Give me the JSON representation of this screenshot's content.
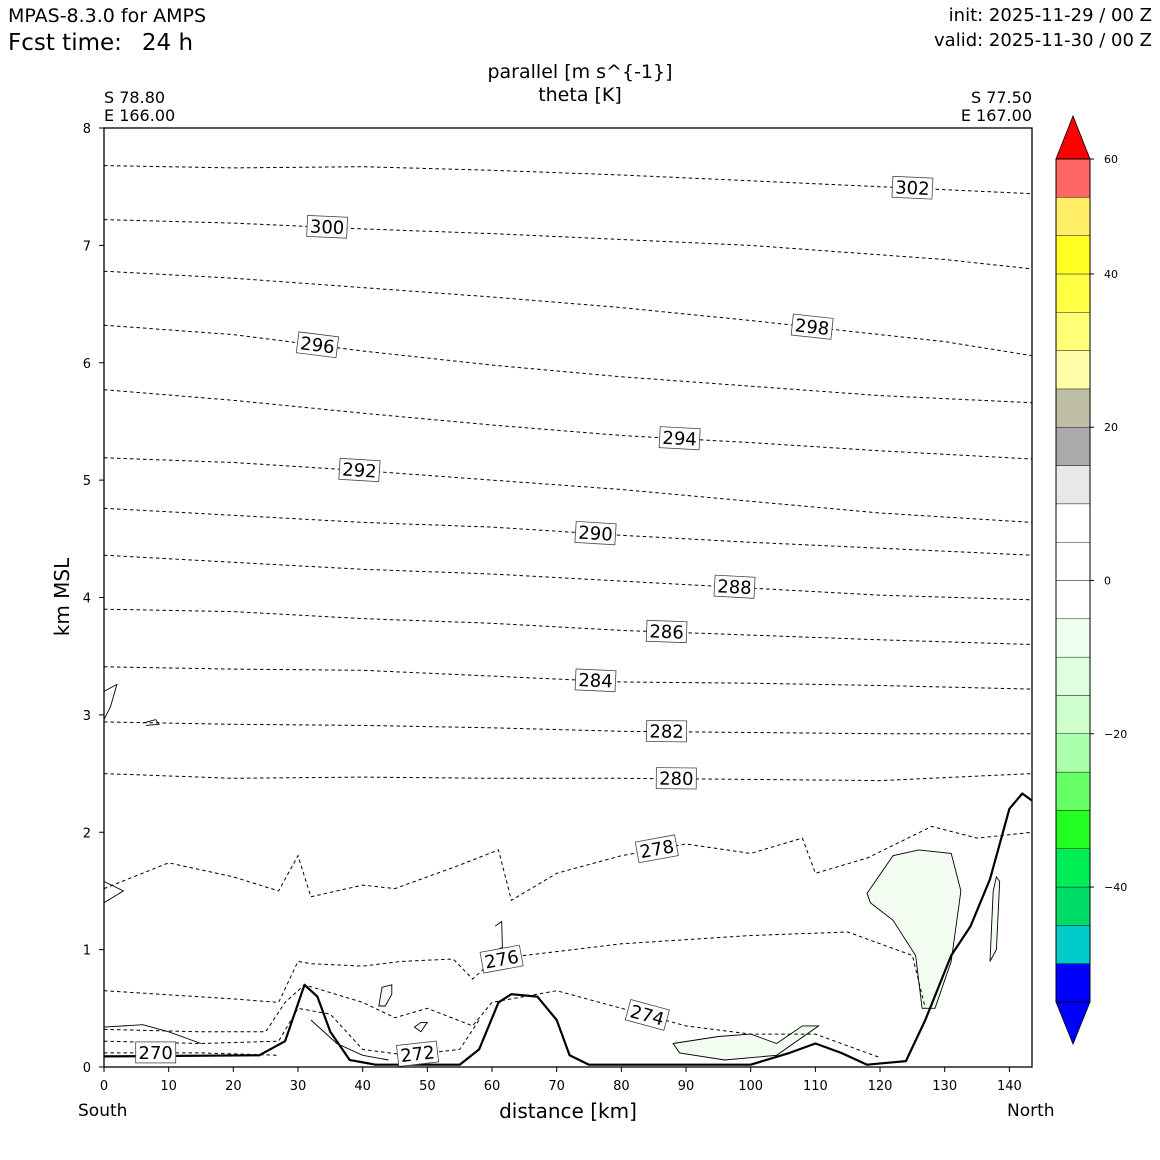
{
  "header": {
    "model": "MPAS-8.3.0 for AMPS",
    "fcst_label": "Fcst time:",
    "fcst_value": "24 h",
    "init": "init: 2025-11-29 / 00 Z",
    "valid": "valid: 2025-11-30 / 00 Z"
  },
  "chart_data": {
    "type": "contour",
    "title": "parallel [m s^{-1}]",
    "subtitle": "theta [K]",
    "xlabel": "distance [km]",
    "ylabel": "km MSL",
    "xlim": [
      0,
      143.5
    ],
    "ylim": [
      0,
      8
    ],
    "x_ticks": [
      0,
      10,
      20,
      30,
      40,
      50,
      60,
      70,
      80,
      90,
      100,
      110,
      120,
      130,
      140
    ],
    "y_ticks": [
      0,
      1,
      2,
      3,
      4,
      5,
      6,
      7,
      8
    ],
    "start_point": {
      "lat": "S 78.80",
      "lon": "E 166.00",
      "end_label": "South"
    },
    "end_point": {
      "lat": "S 77.50",
      "lon": "E 167.00",
      "end_label": "North"
    },
    "theta_contours": [
      {
        "label": "302",
        "label_x": 125.0,
        "points": [
          [
            0,
            7.68
          ],
          [
            20,
            7.66
          ],
          [
            40,
            7.67
          ],
          [
            60,
            7.64
          ],
          [
            80,
            7.6
          ],
          [
            100,
            7.55
          ],
          [
            120,
            7.5
          ],
          [
            143.5,
            7.44
          ]
        ]
      },
      {
        "label": "300",
        "label_x": 34.5,
        "points": [
          [
            0,
            7.22
          ],
          [
            20,
            7.19
          ],
          [
            40,
            7.14
          ],
          [
            60,
            7.1
          ],
          [
            80,
            7.05
          ],
          [
            100,
            7.0
          ],
          [
            120,
            6.92
          ],
          [
            130,
            6.88
          ],
          [
            143.5,
            6.8
          ]
        ]
      },
      {
        "label": "298",
        "label_x": 109.5,
        "points": [
          [
            0,
            6.78
          ],
          [
            20,
            6.72
          ],
          [
            40,
            6.64
          ],
          [
            60,
            6.56
          ],
          [
            80,
            6.47
          ],
          [
            100,
            6.36
          ],
          [
            120,
            6.24
          ],
          [
            130,
            6.18
          ],
          [
            143.5,
            6.06
          ]
        ]
      },
      {
        "label": "296",
        "label_x": 33.0,
        "points": [
          [
            0,
            6.32
          ],
          [
            20,
            6.24
          ],
          [
            40,
            6.1
          ],
          [
            60,
            5.98
          ],
          [
            80,
            5.88
          ],
          [
            100,
            5.8
          ],
          [
            120,
            5.72
          ],
          [
            143.5,
            5.66
          ]
        ]
      },
      {
        "label": "294",
        "label_x": 89.0,
        "points": [
          [
            0,
            5.77
          ],
          [
            20,
            5.68
          ],
          [
            40,
            5.57
          ],
          [
            60,
            5.47
          ],
          [
            80,
            5.38
          ],
          [
            100,
            5.32
          ],
          [
            120,
            5.25
          ],
          [
            143.5,
            5.18
          ]
        ]
      },
      {
        "label": "292",
        "label_x": 39.5,
        "points": [
          [
            0,
            5.19
          ],
          [
            20,
            5.15
          ],
          [
            40,
            5.08
          ],
          [
            60,
            5.0
          ],
          [
            80,
            4.92
          ],
          [
            100,
            4.82
          ],
          [
            120,
            4.72
          ],
          [
            143.5,
            4.64
          ]
        ]
      },
      {
        "label": "290",
        "label_x": 76.0,
        "points": [
          [
            0,
            4.76
          ],
          [
            20,
            4.7
          ],
          [
            40,
            4.64
          ],
          [
            60,
            4.6
          ],
          [
            80,
            4.53
          ],
          [
            100,
            4.47
          ],
          [
            120,
            4.42
          ],
          [
            143.5,
            4.36
          ]
        ]
      },
      {
        "label": "288",
        "label_x": 97.5,
        "points": [
          [
            0,
            4.36
          ],
          [
            20,
            4.3
          ],
          [
            40,
            4.24
          ],
          [
            60,
            4.2
          ],
          [
            80,
            4.14
          ],
          [
            100,
            4.08
          ],
          [
            120,
            4.02
          ],
          [
            143.5,
            3.98
          ]
        ]
      },
      {
        "label": "286",
        "label_x": 87.0,
        "points": [
          [
            0,
            3.9
          ],
          [
            20,
            3.88
          ],
          [
            40,
            3.82
          ],
          [
            60,
            3.78
          ],
          [
            80,
            3.72
          ],
          [
            100,
            3.68
          ],
          [
            120,
            3.64
          ],
          [
            143.5,
            3.6
          ]
        ]
      },
      {
        "label": "284",
        "label_x": 76.0,
        "points": [
          [
            0,
            3.41
          ],
          [
            20,
            3.39
          ],
          [
            40,
            3.38
          ],
          [
            60,
            3.33
          ],
          [
            80,
            3.28
          ],
          [
            100,
            3.27
          ],
          [
            120,
            3.25
          ],
          [
            143.5,
            3.22
          ]
        ]
      },
      {
        "label": "282",
        "label_x": 87.0,
        "points": [
          [
            0,
            2.94
          ],
          [
            20,
            2.92
          ],
          [
            40,
            2.91
          ],
          [
            60,
            2.89
          ],
          [
            80,
            2.86
          ],
          [
            100,
            2.85
          ],
          [
            120,
            2.84
          ],
          [
            143.5,
            2.84
          ]
        ]
      },
      {
        "label": "280",
        "label_x": 88.5,
        "points": [
          [
            0,
            2.5
          ],
          [
            20,
            2.46
          ],
          [
            40,
            2.47
          ],
          [
            60,
            2.46
          ],
          [
            80,
            2.46
          ],
          [
            100,
            2.45
          ],
          [
            120,
            2.44
          ],
          [
            143.5,
            2.5
          ]
        ]
      },
      {
        "label": "278",
        "label_x": 85.5,
        "points": [
          [
            0,
            1.52
          ],
          [
            10,
            1.74
          ],
          [
            20,
            1.62
          ],
          [
            27,
            1.5
          ],
          [
            30,
            1.8
          ],
          [
            32,
            1.45
          ],
          [
            40,
            1.55
          ],
          [
            45,
            1.52
          ],
          [
            55,
            1.72
          ],
          [
            61,
            1.85
          ],
          [
            63,
            1.42
          ],
          [
            70,
            1.65
          ],
          [
            80,
            1.8
          ],
          [
            90,
            1.9
          ],
          [
            100,
            1.82
          ],
          [
            108,
            1.95
          ],
          [
            110,
            1.65
          ],
          [
            118,
            1.78
          ],
          [
            128,
            2.05
          ],
          [
            135,
            1.95
          ],
          [
            143.5,
            2.0
          ]
        ]
      },
      {
        "label": "276",
        "label_x": 61.5,
        "points": [
          [
            0,
            0.65
          ],
          [
            20,
            0.58
          ],
          [
            27,
            0.55
          ],
          [
            30,
            0.9
          ],
          [
            32,
            0.88
          ],
          [
            40,
            0.86
          ],
          [
            46,
            0.9
          ],
          [
            54,
            0.92
          ],
          [
            57,
            0.75
          ],
          [
            60,
            0.9
          ],
          [
            65,
            0.95
          ],
          [
            80,
            1.05
          ],
          [
            100,
            1.12
          ],
          [
            115,
            1.15
          ],
          [
            125,
            0.95
          ],
          [
            127,
            0.5
          ]
        ]
      },
      {
        "label": "274",
        "label_x": 84.0,
        "points": [
          [
            0,
            0.32
          ],
          [
            15,
            0.3
          ],
          [
            25,
            0.3
          ],
          [
            28,
            0.55
          ],
          [
            31,
            0.7
          ],
          [
            40,
            0.55
          ],
          [
            45,
            0.42
          ],
          [
            50,
            0.5
          ],
          [
            57,
            0.35
          ],
          [
            60,
            0.55
          ],
          [
            70,
            0.65
          ],
          [
            80,
            0.5
          ],
          [
            90,
            0.35
          ],
          [
            100,
            0.28
          ],
          [
            110,
            0.28
          ],
          [
            120,
            0.08
          ]
        ]
      },
      {
        "label": "272",
        "label_x": 48.5,
        "points": [
          [
            0,
            0.22
          ],
          [
            15,
            0.2
          ],
          [
            27,
            0.22
          ],
          [
            30,
            0.5
          ],
          [
            35,
            0.45
          ],
          [
            40,
            0.15
          ],
          [
            47,
            0.1
          ],
          [
            55,
            0.15
          ],
          [
            58,
            0.4
          ]
        ]
      },
      {
        "label": "270",
        "label_x": 8.0,
        "points": [
          [
            0,
            0.12
          ],
          [
            15,
            0.12
          ],
          [
            27,
            0.1
          ]
        ]
      }
    ],
    "terrain": [
      [
        0,
        0.09
      ],
      [
        24,
        0.1
      ],
      [
        28,
        0.22
      ],
      [
        31,
        0.7
      ],
      [
        33,
        0.6
      ],
      [
        35,
        0.3
      ],
      [
        38,
        0.06
      ],
      [
        42,
        0.02
      ],
      [
        55,
        0.02
      ],
      [
        58,
        0.15
      ],
      [
        61,
        0.55
      ],
      [
        63,
        0.62
      ],
      [
        67,
        0.6
      ],
      [
        70,
        0.4
      ],
      [
        72,
        0.1
      ],
      [
        75,
        0.02
      ],
      [
        100,
        0.02
      ],
      [
        106,
        0.12
      ],
      [
        110,
        0.2
      ],
      [
        114,
        0.12
      ],
      [
        118,
        0.02
      ],
      [
        124,
        0.05
      ],
      [
        127,
        0.4
      ],
      [
        131,
        0.95
      ],
      [
        134,
        1.2
      ],
      [
        137,
        1.6
      ],
      [
        140,
        2.2
      ],
      [
        142,
        2.33
      ],
      [
        143.5,
        2.27
      ]
    ],
    "wind_contours": [
      {
        "value": -10,
        "fill": true,
        "points": [
          [
            118,
            1.48
          ],
          [
            122,
            1.8
          ],
          [
            126,
            1.85
          ],
          [
            131,
            1.82
          ],
          [
            132.5,
            1.5
          ],
          [
            131,
            0.9
          ],
          [
            128.5,
            0.5
          ],
          [
            126.5,
            0.5
          ],
          [
            125.5,
            0.95
          ],
          [
            122,
            1.25
          ],
          [
            118.5,
            1.4
          ]
        ]
      },
      {
        "value": -10,
        "fill": true,
        "points": [
          [
            88,
            0.2
          ],
          [
            95,
            0.26
          ],
          [
            100,
            0.28
          ],
          [
            104,
            0.2
          ],
          [
            108,
            0.35
          ],
          [
            110.5,
            0.35
          ],
          [
            104,
            0.1
          ],
          [
            96,
            0.06
          ],
          [
            89,
            0.12
          ]
        ]
      },
      {
        "value": -10,
        "fill": true,
        "points": [
          [
            42.5,
            0.52
          ],
          [
            43,
            0.68
          ],
          [
            44.5,
            0.7
          ],
          [
            44.5,
            0.62
          ],
          [
            43.5,
            0.52
          ]
        ]
      },
      {
        "value": -10,
        "fill": true,
        "points": [
          [
            48,
            0.34
          ],
          [
            49,
            0.38
          ],
          [
            50,
            0.38
          ],
          [
            49,
            0.3
          ]
        ]
      },
      {
        "value": -10,
        "fill": true,
        "points": [
          [
            137,
            0.9
          ],
          [
            137.5,
            1.5
          ],
          [
            138,
            1.62
          ],
          [
            138.5,
            1.58
          ],
          [
            138,
            1.0
          ]
        ]
      },
      {
        "value": 0,
        "fill": false,
        "points": [
          [
            0,
            3.2
          ],
          [
            2,
            3.26
          ],
          [
            1,
            3.07
          ],
          [
            0,
            2.96
          ]
        ]
      },
      {
        "value": 0,
        "fill": false,
        "points": [
          [
            0,
            1.58
          ],
          [
            3,
            1.5
          ],
          [
            0,
            1.4
          ]
        ]
      },
      {
        "value": 0,
        "fill": false,
        "points": [
          [
            6,
            2.93
          ],
          [
            8,
            2.96
          ],
          [
            8.5,
            2.92
          ],
          [
            6.5,
            2.91
          ]
        ]
      },
      {
        "value": 0,
        "fill": false,
        "points": [
          [
            60.5,
            1.2
          ],
          [
            61.5,
            1.24
          ],
          [
            61.6,
            1.02
          ],
          [
            60.8,
            1.0
          ]
        ]
      },
      {
        "value": 0,
        "fill": false,
        "points": [
          [
            0,
            0.34
          ],
          [
            6,
            0.36
          ],
          [
            10,
            0.3
          ],
          [
            15,
            0.2
          ]
        ]
      },
      {
        "value": 0,
        "fill": false,
        "points": [
          [
            32,
            0.4
          ],
          [
            36,
            0.2
          ],
          [
            40,
            0.1
          ],
          [
            44,
            0.06
          ]
        ]
      }
    ],
    "colorbar": {
      "vmin": -55,
      "vmax": 55,
      "ticks": [
        -40,
        -20,
        0,
        20,
        40,
        60
      ],
      "extend": "both",
      "levels": [
        -55,
        -50,
        -45,
        -40,
        -35,
        -30,
        -25,
        -20,
        -15,
        -10,
        -5,
        0,
        5,
        10,
        15,
        20,
        25,
        30,
        35,
        40,
        45,
        50,
        55
      ],
      "colors": [
        "#0000ff",
        "#00cccc",
        "#00dd66",
        "#00ee55",
        "#22ff22",
        "#66ff66",
        "#aaffaa",
        "#ccffcc",
        "#ddffdd",
        "#eeffee",
        "#ffffff",
        "#ffffff",
        "#ffffff",
        "#e8e8e8",
        "#aaaaaa",
        "#bfbfa6",
        "#ffffaa",
        "#ffff77",
        "#ffff44",
        "#ffff22",
        "#ffee66",
        "#ff6666",
        "#ff0000"
      ],
      "under_color": "#0000ff",
      "over_color": "#ff0000"
    }
  }
}
